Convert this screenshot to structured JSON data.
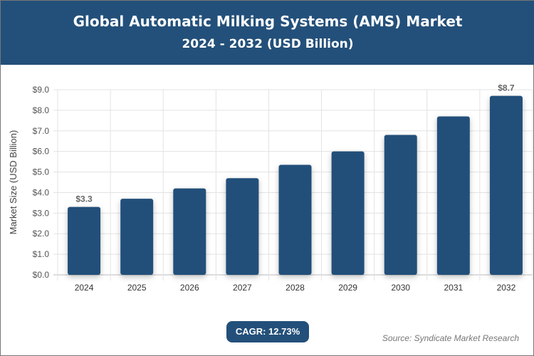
{
  "header": {
    "title": "Global Automatic Milking Systems (AMS) Market",
    "subtitle": "2024 - 2032 (USD Billion)"
  },
  "footer": {
    "cagr": "CAGR: 12.73%",
    "source": "Source: Syndicate Market Research"
  },
  "colors": {
    "bar": "#23507a",
    "header": "#23507a"
  },
  "chart_data": {
    "type": "bar",
    "categories": [
      "2024",
      "2025",
      "2026",
      "2027",
      "2028",
      "2029",
      "2030",
      "2031",
      "2032"
    ],
    "values": [
      3.3,
      3.7,
      4.2,
      4.7,
      5.35,
      6.0,
      6.8,
      7.7,
      8.7
    ],
    "data_labels": {
      "0": "$3.3",
      "8": "$8.7"
    },
    "ylabel": "Market Size (USD Billion)",
    "ylim": [
      0,
      9
    ],
    "yticks": [
      "$0.0",
      "$1.0",
      "$2.0",
      "$3.0",
      "$4.0",
      "$5.0",
      "$6.0",
      "$7.0",
      "$8.0",
      "$9.0"
    ],
    "grid": true
  }
}
